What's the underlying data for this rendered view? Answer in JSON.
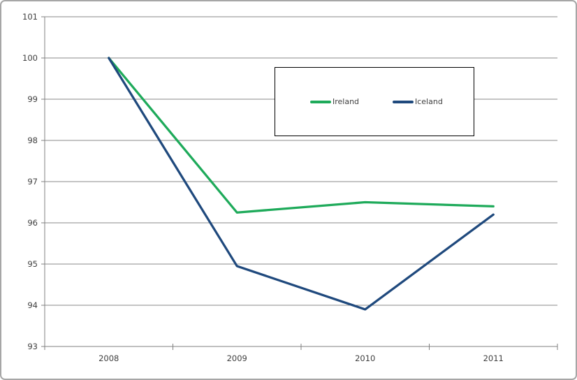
{
  "frame": {
    "background": "#ffffff",
    "border_color": "#a6a6a6"
  },
  "chart_data": {
    "type": "line",
    "categories": [
      "2008",
      "2009",
      "2010",
      "2011"
    ],
    "series": [
      {
        "name": "Ireland",
        "color": "#1eaa5a",
        "values": [
          100,
          96.25,
          96.5,
          96.4
        ]
      },
      {
        "name": "Iceland",
        "color": "#1f497d",
        "values": [
          100,
          94.95,
          93.9,
          96.2
        ]
      }
    ],
    "title": "",
    "xlabel": "",
    "ylabel": "",
    "ylim": [
      93,
      101
    ],
    "yticks": [
      93,
      94,
      95,
      96,
      97,
      98,
      99,
      100,
      101
    ],
    "grid": true,
    "legend": {
      "position": "top-center",
      "border_color": "#000000",
      "background": "#ffffff"
    },
    "style": {
      "grid_color": "#8a8a8a",
      "axis_color": "#808080",
      "tick_label_color": "#404040",
      "line_width": 3.25
    }
  }
}
